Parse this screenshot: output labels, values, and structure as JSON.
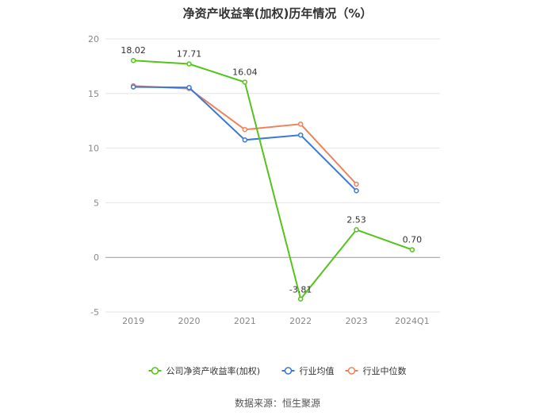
{
  "chart_data": {
    "type": "line",
    "title": "净资产收益率(加权)历年情况（%）",
    "categories": [
      "2019",
      "2020",
      "2021",
      "2022",
      "2023",
      "2024Q1"
    ],
    "ylim": [
      -5,
      20
    ],
    "yticks": [
      -5,
      0,
      5,
      10,
      15,
      20
    ],
    "grid": true,
    "legend_position": "bottom",
    "series": [
      {
        "name": "公司净资产收益率(加权)",
        "color": "#52c41a",
        "values": [
          18.02,
          17.71,
          16.04,
          -3.81,
          2.53,
          0.7
        ],
        "labels": [
          "18.02",
          "17.71",
          "16.04",
          "-3.81",
          "2.53",
          "0.70"
        ]
      },
      {
        "name": "行业均值",
        "color": "#3b78d8",
        "values": [
          15.6,
          15.55,
          10.75,
          11.2,
          6.1,
          null
        ]
      },
      {
        "name": "行业中位数",
        "color": "#f0825a",
        "values": [
          15.7,
          15.45,
          11.7,
          12.2,
          6.7,
          null
        ]
      }
    ]
  },
  "source": "数据来源：恒生聚源"
}
